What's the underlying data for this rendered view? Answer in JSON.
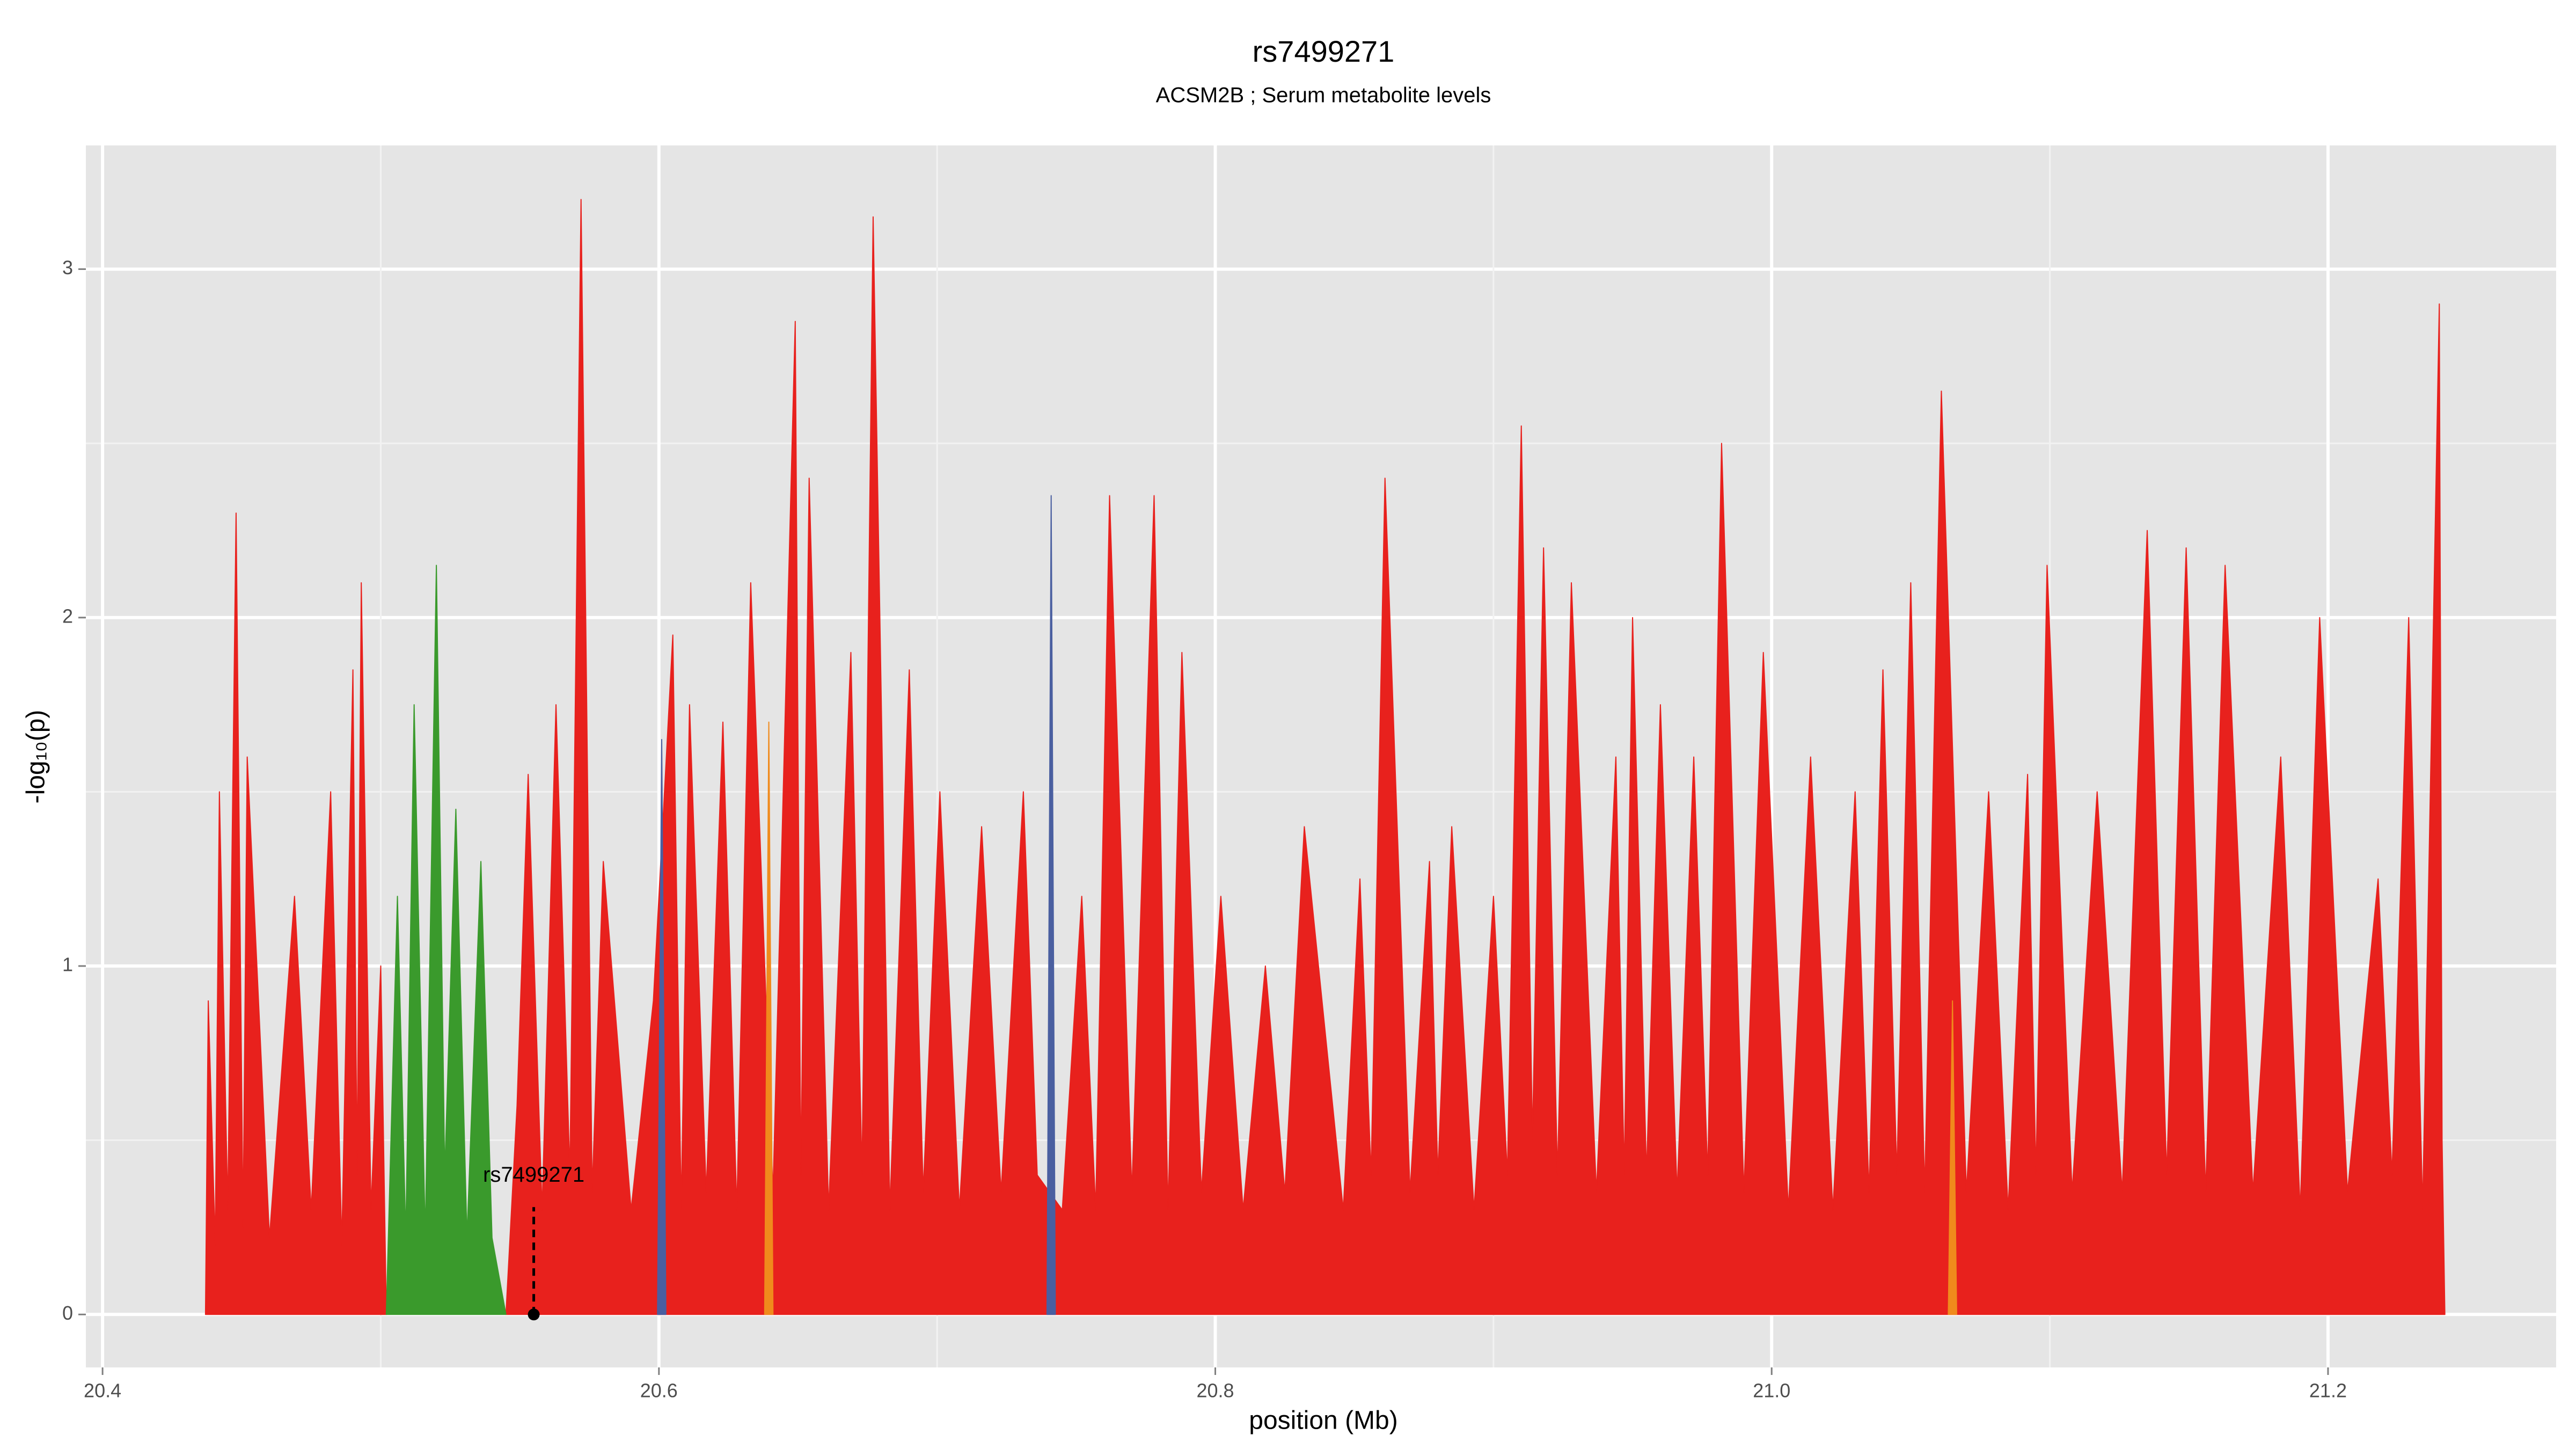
{
  "chart_data": {
    "type": "area",
    "title": "rs7499271",
    "subtitle": "ACSM2B ; Serum metabolite levels",
    "x_label": "position (Mb)",
    "y_label": "-log₁₀(p)",
    "xlim": [
      20.394,
      21.282
    ],
    "ylim": [
      -0.152,
      3.355
    ],
    "xticks": [
      20.4,
      20.6,
      20.8,
      {
        "value": 21,
        "label": "21.0"
      },
      21.2
    ],
    "yticks": [
      0,
      1,
      2,
      3
    ],
    "grid": true,
    "minor_grid": true,
    "series": [
      {
        "color": "#e8211d",
        "x": [
          20.437,
          20.438,
          20.4405,
          20.442,
          20.445,
          20.448,
          20.4505,
          20.452,
          20.46,
          20.469,
          20.475,
          20.482,
          20.486,
          20.49,
          20.4915,
          20.493,
          20.4965,
          20.5,
          20.502,
          20.523,
          20.545,
          20.549,
          20.553,
          20.558,
          20.563,
          20.568,
          20.572,
          20.576,
          20.58,
          20.59,
          20.598,
          20.605,
          20.608,
          20.611,
          20.617,
          20.623,
          20.628,
          20.633,
          20.641,
          20.649,
          20.651,
          20.654,
          20.661,
          20.669,
          20.673,
          20.677,
          20.683,
          20.69,
          20.695,
          20.701,
          20.708,
          20.716,
          20.723,
          20.731,
          20.736,
          20.745,
          20.752,
          20.757,
          20.762,
          20.77,
          20.778,
          20.783,
          20.788,
          20.795,
          20.802,
          20.81,
          20.818,
          20.825,
          20.832,
          20.846,
          20.852,
          20.856,
          20.861,
          20.87,
          20.877,
          20.88,
          20.885,
          20.893,
          20.9,
          20.905,
          20.91,
          20.914,
          20.918,
          20.923,
          20.928,
          20.937,
          20.944,
          20.947,
          20.95,
          20.955,
          20.96,
          20.966,
          20.972,
          20.977,
          20.982,
          20.99,
          20.997,
          21.006,
          21.014,
          21.022,
          21.03,
          21.035,
          21.04,
          21.045,
          21.05,
          21.055,
          21.061,
          21.07,
          21.078,
          21.085,
          21.092,
          21.095,
          21.099,
          21.108,
          21.117,
          21.126,
          21.135,
          21.142,
          21.149,
          21.156,
          21.163,
          21.173,
          21.183,
          21.19,
          21.197,
          21.207,
          21.218,
          21.223,
          21.229,
          21.234,
          21.24,
          21.241,
          21.242
        ],
        "values": [
          0,
          0.9,
          0.2,
          1.5,
          0.3,
          2.3,
          0.25,
          1.6,
          0.22,
          1.2,
          0.3,
          1.5,
          0.2,
          1.85,
          0.4,
          2.1,
          0.3,
          1.0,
          0,
          null,
          0,
          0.6,
          1.55,
          0.3,
          1.75,
          0.4,
          3.2,
          0.35,
          1.3,
          0.3,
          0.9,
          1.95,
          0.3,
          1.75,
          0.35,
          1.7,
          0.3,
          2.1,
          0.35,
          2.85,
          0.4,
          2.4,
          0.3,
          1.9,
          0.4,
          3.15,
          0.3,
          1.85,
          0.35,
          1.5,
          0.3,
          1.4,
          0.35,
          1.5,
          0.4,
          0.3,
          1.2,
          0.3,
          2.35,
          0.35,
          2.35,
          0.3,
          1.9,
          0.35,
          1.2,
          0.3,
          1.0,
          0.35,
          1.4,
          0.3,
          1.25,
          0.4,
          2.4,
          0.35,
          1.3,
          0.4,
          1.4,
          0.3,
          1.2,
          0.4,
          2.55,
          0.5,
          2.2,
          0.4,
          2.1,
          0.35,
          1.6,
          0.4,
          2.0,
          0.4,
          1.75,
          0.35,
          1.6,
          0.4,
          2.5,
          0.35,
          1.9,
          0.3,
          1.6,
          0.3,
          1.5,
          0.35,
          1.85,
          0.4,
          2.1,
          0.35,
          2.65,
          0.35,
          1.5,
          0.3,
          1.55,
          0.4,
          2.15,
          0.35,
          1.5,
          0.35,
          2.25,
          0.4,
          2.2,
          0.35,
          2.15,
          0.35,
          1.6,
          0.3,
          2.0,
          0.35,
          1.25,
          0.4,
          2.0,
          0.3,
          2.9,
          0.5,
          0
        ]
      },
      {
        "color": "#3a9a2c",
        "x": [
          20.502,
          20.506,
          20.509,
          20.512,
          20.516,
          20.52,
          20.523,
          20.527,
          20.531,
          20.536,
          20.54,
          20.545
        ],
        "values": [
          0,
          1.2,
          0.22,
          1.75,
          0.22,
          2.15,
          0.4,
          1.45,
          0.22,
          1.3,
          0.22,
          0
        ]
      },
      {
        "color": "#4a5fa0",
        "x": [
          20.5995,
          20.601,
          20.6025,
          20.67,
          20.7395,
          20.741,
          20.7425
        ],
        "values": [
          0,
          1.65,
          0,
          null,
          0,
          2.35,
          0
        ]
      },
      {
        "color": "#f08a1c",
        "x": [
          20.638,
          20.6395,
          20.641,
          20.8,
          21.0635,
          21.065,
          21.0665
        ],
        "values": [
          0,
          1.7,
          0,
          null,
          0,
          0.9,
          0
        ]
      }
    ],
    "annotation": {
      "label": "rs7499271",
      "x": 20.555,
      "y": 0
    }
  }
}
